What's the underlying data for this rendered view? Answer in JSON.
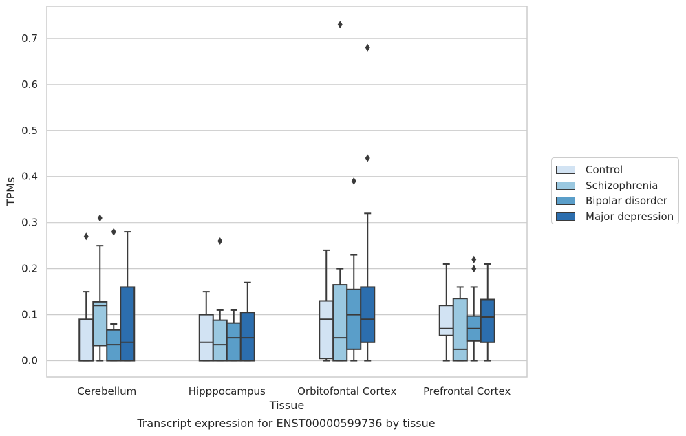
{
  "caption": "Transcript expression for ENST00000599736 by tissue",
  "chart_data": {
    "type": "box",
    "xlabel": "Tissue",
    "ylabel": "TPMs",
    "ylim": [
      -0.035,
      0.77
    ],
    "yticks": [
      0.0,
      0.1,
      0.2,
      0.3,
      0.4,
      0.5,
      0.6,
      0.7
    ],
    "ytick_labels": [
      "0.0",
      "0.1",
      "0.2",
      "0.3",
      "0.4",
      "0.5",
      "0.6",
      "0.7"
    ],
    "grid": "horizontal",
    "legend_position": "right",
    "categories": [
      "Cerebellum",
      "Hipppocampus",
      "Orbitofontal Cortex",
      "Prefrontal Cortex"
    ],
    "series": [
      {
        "name": "Control",
        "color": "#d2e3f3",
        "boxes": [
          {
            "min": 0.0,
            "q1": 0.0,
            "median": 0.0,
            "q3": 0.09,
            "max": 0.15,
            "outliers": [
              0.27
            ]
          },
          {
            "min": 0.0,
            "q1": 0.0,
            "median": 0.04,
            "q3": 0.1,
            "max": 0.15,
            "outliers": []
          },
          {
            "min": 0.0,
            "q1": 0.005,
            "median": 0.09,
            "q3": 0.13,
            "max": 0.24,
            "outliers": []
          },
          {
            "min": 0.0,
            "q1": 0.055,
            "median": 0.07,
            "q3": 0.12,
            "max": 0.21,
            "outliers": []
          }
        ]
      },
      {
        "name": "Schizophrenia",
        "color": "#9ac8e0",
        "boxes": [
          {
            "min": 0.0,
            "q1": 0.033,
            "median": 0.12,
            "q3": 0.128,
            "max": 0.25,
            "outliers": [
              0.31
            ]
          },
          {
            "min": 0.0,
            "q1": 0.0,
            "median": 0.035,
            "q3": 0.088,
            "max": 0.11,
            "outliers": [
              0.26
            ]
          },
          {
            "min": 0.0,
            "q1": 0.0,
            "median": 0.05,
            "q3": 0.165,
            "max": 0.2,
            "outliers": [
              0.73
            ]
          },
          {
            "min": 0.0,
            "q1": 0.0,
            "median": 0.025,
            "q3": 0.135,
            "max": 0.16,
            "outliers": []
          }
        ]
      },
      {
        "name": "Bipolar disorder",
        "color": "#5a9ec9",
        "boxes": [
          {
            "min": 0.0,
            "q1": 0.0,
            "median": 0.035,
            "q3": 0.067,
            "max": 0.08,
            "outliers": [
              0.28
            ]
          },
          {
            "min": 0.0,
            "q1": 0.0,
            "median": 0.05,
            "q3": 0.082,
            "max": 0.11,
            "outliers": []
          },
          {
            "min": 0.0,
            "q1": 0.025,
            "median": 0.1,
            "q3": 0.155,
            "max": 0.23,
            "outliers": [
              0.39
            ]
          },
          {
            "min": 0.0,
            "q1": 0.043,
            "median": 0.07,
            "q3": 0.097,
            "max": 0.16,
            "outliers": [
              0.2,
              0.22
            ]
          }
        ]
      },
      {
        "name": "Major depression",
        "color": "#2c6eae",
        "boxes": [
          {
            "min": 0.0,
            "q1": 0.0,
            "median": 0.04,
            "q3": 0.16,
            "max": 0.28,
            "outliers": []
          },
          {
            "min": 0.0,
            "q1": 0.0,
            "median": 0.05,
            "q3": 0.105,
            "max": 0.17,
            "outliers": []
          },
          {
            "min": 0.0,
            "q1": 0.04,
            "median": 0.09,
            "q3": 0.16,
            "max": 0.32,
            "outliers": [
              0.44,
              0.68
            ]
          },
          {
            "min": 0.0,
            "q1": 0.04,
            "median": 0.095,
            "q3": 0.133,
            "max": 0.21,
            "outliers": []
          }
        ]
      }
    ]
  }
}
